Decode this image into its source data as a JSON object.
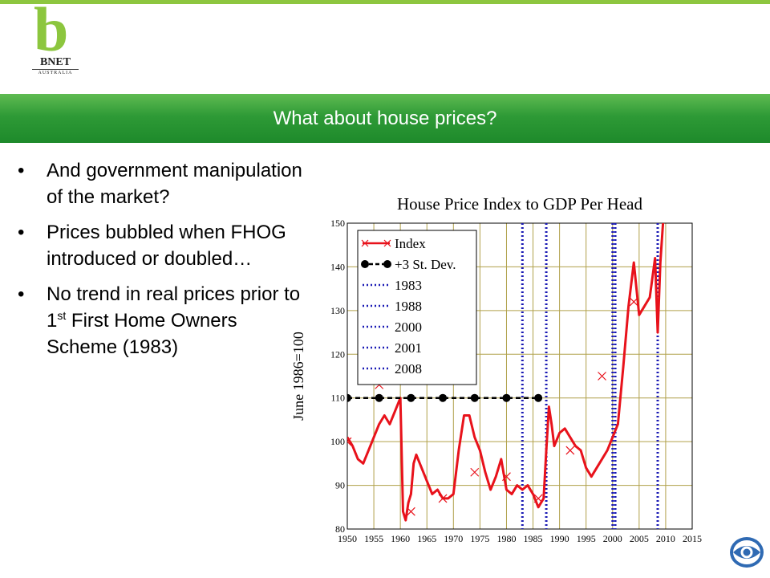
{
  "logo": {
    "letter": "b",
    "name": "BNET",
    "sub": "AUSTRALIA"
  },
  "banner": {
    "title": "What about house prices?"
  },
  "bullets": [
    {
      "text": "And government manipulation of the market?"
    },
    {
      "text": "Prices bubbled when FHOG introduced or doubled…"
    },
    {
      "text_before": "No trend in real prices prior to 1",
      "sup": "st",
      "text_after": " First Home Owners Scheme (1983)"
    }
  ],
  "bullet_glyph": "•",
  "chart_data": {
    "type": "line",
    "title": "House Price Index to GDP Per Head",
    "ylabel": "June 1986=100",
    "xlabel": "",
    "xlim": [
      1950,
      2015
    ],
    "ylim": [
      80,
      150
    ],
    "xticks": [
      1950,
      1955,
      1960,
      1965,
      1970,
      1975,
      1980,
      1985,
      1990,
      1995,
      2000,
      2005,
      2010,
      2015
    ],
    "yticks": [
      80,
      90,
      100,
      110,
      120,
      130,
      140,
      150
    ],
    "grid": true,
    "legend_position": "top-left",
    "colors": {
      "index": "#e8121b",
      "markers": "#000000",
      "vlines": "#1a1ab4",
      "grid": "#b0a04a"
    },
    "series": [
      {
        "name": "Index",
        "x": [
          1950.0,
          1951.0,
          1952.0,
          1953.0,
          1954.0,
          1955.0,
          1956.0,
          1957.0,
          1958.0,
          1959.0,
          1960.0,
          1960.5,
          1961.0,
          1961.5,
          1962.0,
          1962.5,
          1963.0,
          1964.0,
          1965.0,
          1966.0,
          1967.0,
          1968.0,
          1969.0,
          1970.0,
          1971.0,
          1972.0,
          1973.0,
          1974.0,
          1975.0,
          1976.0,
          1977.0,
          1978.0,
          1979.0,
          1980.0,
          1981.0,
          1982.0,
          1983.0,
          1984.0,
          1985.0,
          1986.0,
          1987.0,
          1987.5,
          1988.0,
          1988.5,
          1989.0,
          1990.0,
          1991.0,
          1992.0,
          1993.0,
          1994.0,
          1995.0,
          1996.0,
          1997.0,
          1998.0,
          1999.0,
          2000.0,
          2001.0,
          2002.0,
          2003.0,
          2004.0,
          2005.0,
          2006.0,
          2007.0,
          2008.0,
          2008.5,
          2009.0,
          2009.5,
          2010.0
        ],
        "y": [
          101,
          99,
          96,
          95,
          98,
          101,
          104,
          106,
          104,
          107,
          110,
          84,
          82,
          86,
          88,
          95,
          97,
          94,
          91,
          88,
          89,
          87,
          87,
          88,
          98,
          106,
          106,
          101,
          98,
          93,
          89,
          92,
          96,
          89,
          88,
          90,
          89,
          90,
          88,
          85,
          87,
          98,
          108,
          104,
          99,
          102,
          103,
          101,
          99,
          98,
          94,
          92,
          94,
          96,
          98,
          101,
          104,
          117,
          131,
          141,
          129,
          131,
          133,
          142,
          125,
          141,
          150,
          153
        ]
      },
      {
        "name": "+3 St. Dev.",
        "x": [
          1950.0,
          1956.0,
          1962.0,
          1968.0,
          1974.0,
          1980.0,
          1986.0
        ],
        "y": [
          110,
          110,
          110,
          110,
          110,
          110,
          110
        ]
      }
    ],
    "index_markers": {
      "x": [
        1950.0,
        1956.0,
        1962.0,
        1968.0,
        1974.0,
        1980.0,
        1986.0,
        1992.0,
        1998.0,
        2004.0
      ],
      "y": [
        100,
        113,
        84,
        87,
        93,
        92,
        87,
        98,
        115,
        132
      ]
    },
    "vertical_lines": [
      {
        "name": "1983",
        "x": 1983.0
      },
      {
        "name": "1988",
        "x": 1987.5
      },
      {
        "name": "2000",
        "x": 2000.0
      },
      {
        "name": "2001",
        "x": 2000.5
      },
      {
        "name": "2008",
        "x": 2008.5
      }
    ]
  }
}
